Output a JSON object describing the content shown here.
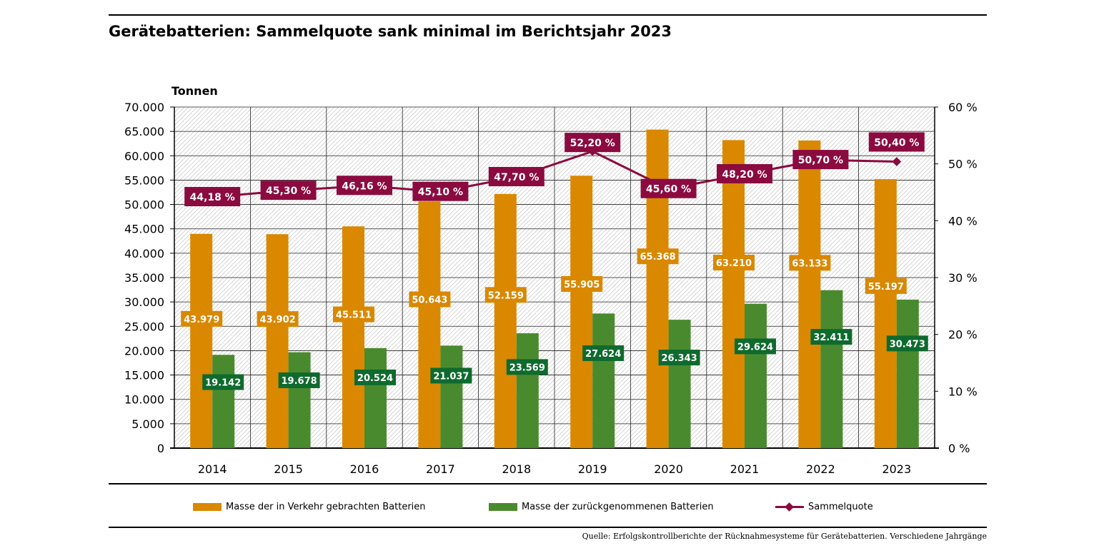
{
  "title": "Gerätebatterien: Sammelquote sank minimal im Berichtsjahr 2023",
  "source": "Quelle: Erfolgskontrollberichte der Rücknahmesysteme für Gerätebatterien. Verschiedene Jahrgänge",
  "colors": {
    "orange": "#D98800",
    "green": "#4A8A2E",
    "green_label": "#0F6A2E",
    "quota": "#8B0A3F"
  },
  "chart_data": {
    "type": "bar",
    "title": "Gerätebatterien: Sammelquote sank minimal im Berichtsjahr 2023",
    "ylabel": "Tonnen",
    "ylim": [
      0,
      70000
    ],
    "y2lim": [
      0,
      60
    ],
    "y_ticks": [
      "70.000",
      "65.000",
      "60.000",
      "55.000",
      "50.000",
      "45.000",
      "40.000",
      "35.000",
      "30.000",
      "25.000",
      "20.000",
      "15.000",
      "10.000",
      "5.000",
      "0"
    ],
    "y2_ticks": [
      "60 %",
      "50 %",
      "40 %",
      "30 %",
      "20 %",
      "10 %",
      "0 %"
    ],
    "categories": [
      "2014",
      "2015",
      "2016",
      "2017",
      "2018",
      "2019",
      "2020",
      "2021",
      "2022",
      "2023"
    ],
    "series": [
      {
        "name": "Masse der in Verkehr gebrachten Batterien",
        "values": [
          43979,
          43902,
          45511,
          50643,
          52159,
          55905,
          65368,
          63210,
          63133,
          55197
        ],
        "labels": [
          "43.979",
          "43.902",
          "45.511",
          "50.643",
          "52.159",
          "55.905",
          "65.368",
          "63.210",
          "63.133",
          "55.197"
        ]
      },
      {
        "name": "Masse der zurückgenommenen Batterien",
        "values": [
          19142,
          19678,
          20524,
          21037,
          23569,
          27624,
          26343,
          29624,
          32411,
          30473
        ],
        "labels": [
          "19.142",
          "19.678",
          "20.524",
          "21.037",
          "23.569",
          "27.624",
          "26.343",
          "29.624",
          "32.411",
          "30.473"
        ]
      },
      {
        "name": "Sammelquote",
        "axis": "right",
        "type": "line",
        "values": [
          44.18,
          45.3,
          46.16,
          45.1,
          47.7,
          52.2,
          45.6,
          48.2,
          50.7,
          50.4
        ],
        "labels": [
          "44,18 %",
          "45,30 %",
          "46,16 %",
          "45,10 %",
          "47,70 %",
          "52,20 %",
          "45,60 %",
          "48,20 %",
          "50,70 %",
          "50,40 %"
        ]
      }
    ],
    "legend": [
      "Masse der in Verkehr gebrachten Batterien",
      "Masse der zurückgenommenen Batterien",
      "Sammelquote"
    ]
  }
}
